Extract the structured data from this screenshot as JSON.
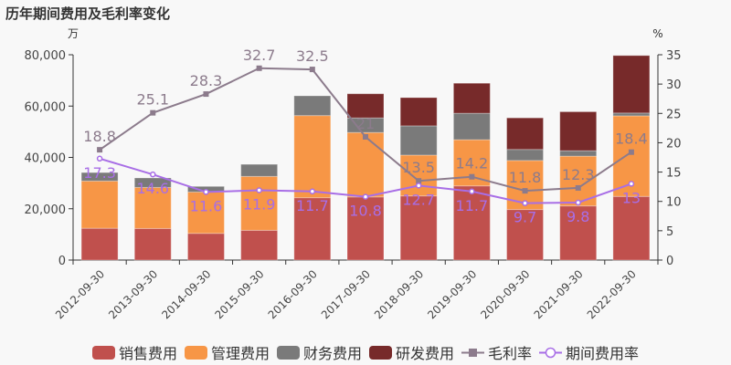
{
  "title": "历年期间费用及毛利率变化",
  "chart_data": {
    "type": "bar",
    "title": "历年期间费用及毛利率变化",
    "ylabel_left": "万",
    "ylabel_right": "%",
    "ylim_left": [
      0,
      80000
    ],
    "ylim_right": [
      0,
      35
    ],
    "yticks_left": [
      "0",
      "20,000",
      "40,000",
      "60,000",
      "80,000"
    ],
    "yticks_right": [
      "0",
      "5",
      "10",
      "15",
      "20",
      "25",
      "30",
      "35"
    ],
    "categories": [
      "2012-09-30",
      "2013-09-30",
      "2014-09-30",
      "2015-09-30",
      "2016-09-30",
      "2017-09-30",
      "2018-09-30",
      "2019-09-30",
      "2020-09-30",
      "2021-09-30",
      "2022-09-30"
    ],
    "series": [
      {
        "name": "销售费用",
        "type": "bar",
        "stack": true,
        "color": "#c0504d",
        "values": [
          12400,
          12300,
          10400,
          11600,
          24300,
          24600,
          25000,
          28900,
          19700,
          21100,
          24800
        ]
      },
      {
        "name": "管理费用",
        "type": "bar",
        "stack": true,
        "color": "#f79646",
        "values": [
          18400,
          16000,
          16100,
          21000,
          32000,
          25100,
          15900,
          18000,
          19100,
          19400,
          31400
        ]
      },
      {
        "name": "财务费用",
        "type": "bar",
        "stack": true,
        "color": "#7a7a7a",
        "values": [
          3300,
          3700,
          2200,
          4700,
          7700,
          5700,
          11400,
          10300,
          4300,
          2100,
          1100
        ]
      },
      {
        "name": "研发费用",
        "type": "bar",
        "stack": true,
        "color": "#772a2a",
        "values": [
          0,
          0,
          0,
          0,
          0,
          9400,
          11000,
          11700,
          12300,
          15200,
          22400
        ]
      },
      {
        "name": "毛利率",
        "type": "line",
        "axis": "right",
        "color": "#8c7b8c",
        "values": [
          18.8,
          25.1,
          28.3,
          32.7,
          32.5,
          21,
          13.5,
          14.2,
          11.8,
          12.3,
          18.4
        ],
        "labels": [
          "18.8",
          "25.1",
          "28.3",
          "32.7",
          "32.5",
          "21",
          "13.5",
          "14.2",
          "11.8",
          "12.3",
          "18.4"
        ]
      },
      {
        "name": "期间费用率",
        "type": "line",
        "axis": "right",
        "color": "#a86ee6",
        "values": [
          17.3,
          14.6,
          11.6,
          11.9,
          11.7,
          10.8,
          12.7,
          11.7,
          9.7,
          9.8,
          13
        ],
        "labels": [
          "17.3",
          "14.6",
          "11.6",
          "11.9",
          "11.7",
          "10.8",
          "12.7",
          "11.7",
          "9.7",
          "9.8",
          "13"
        ]
      }
    ],
    "legend": "bottom"
  }
}
